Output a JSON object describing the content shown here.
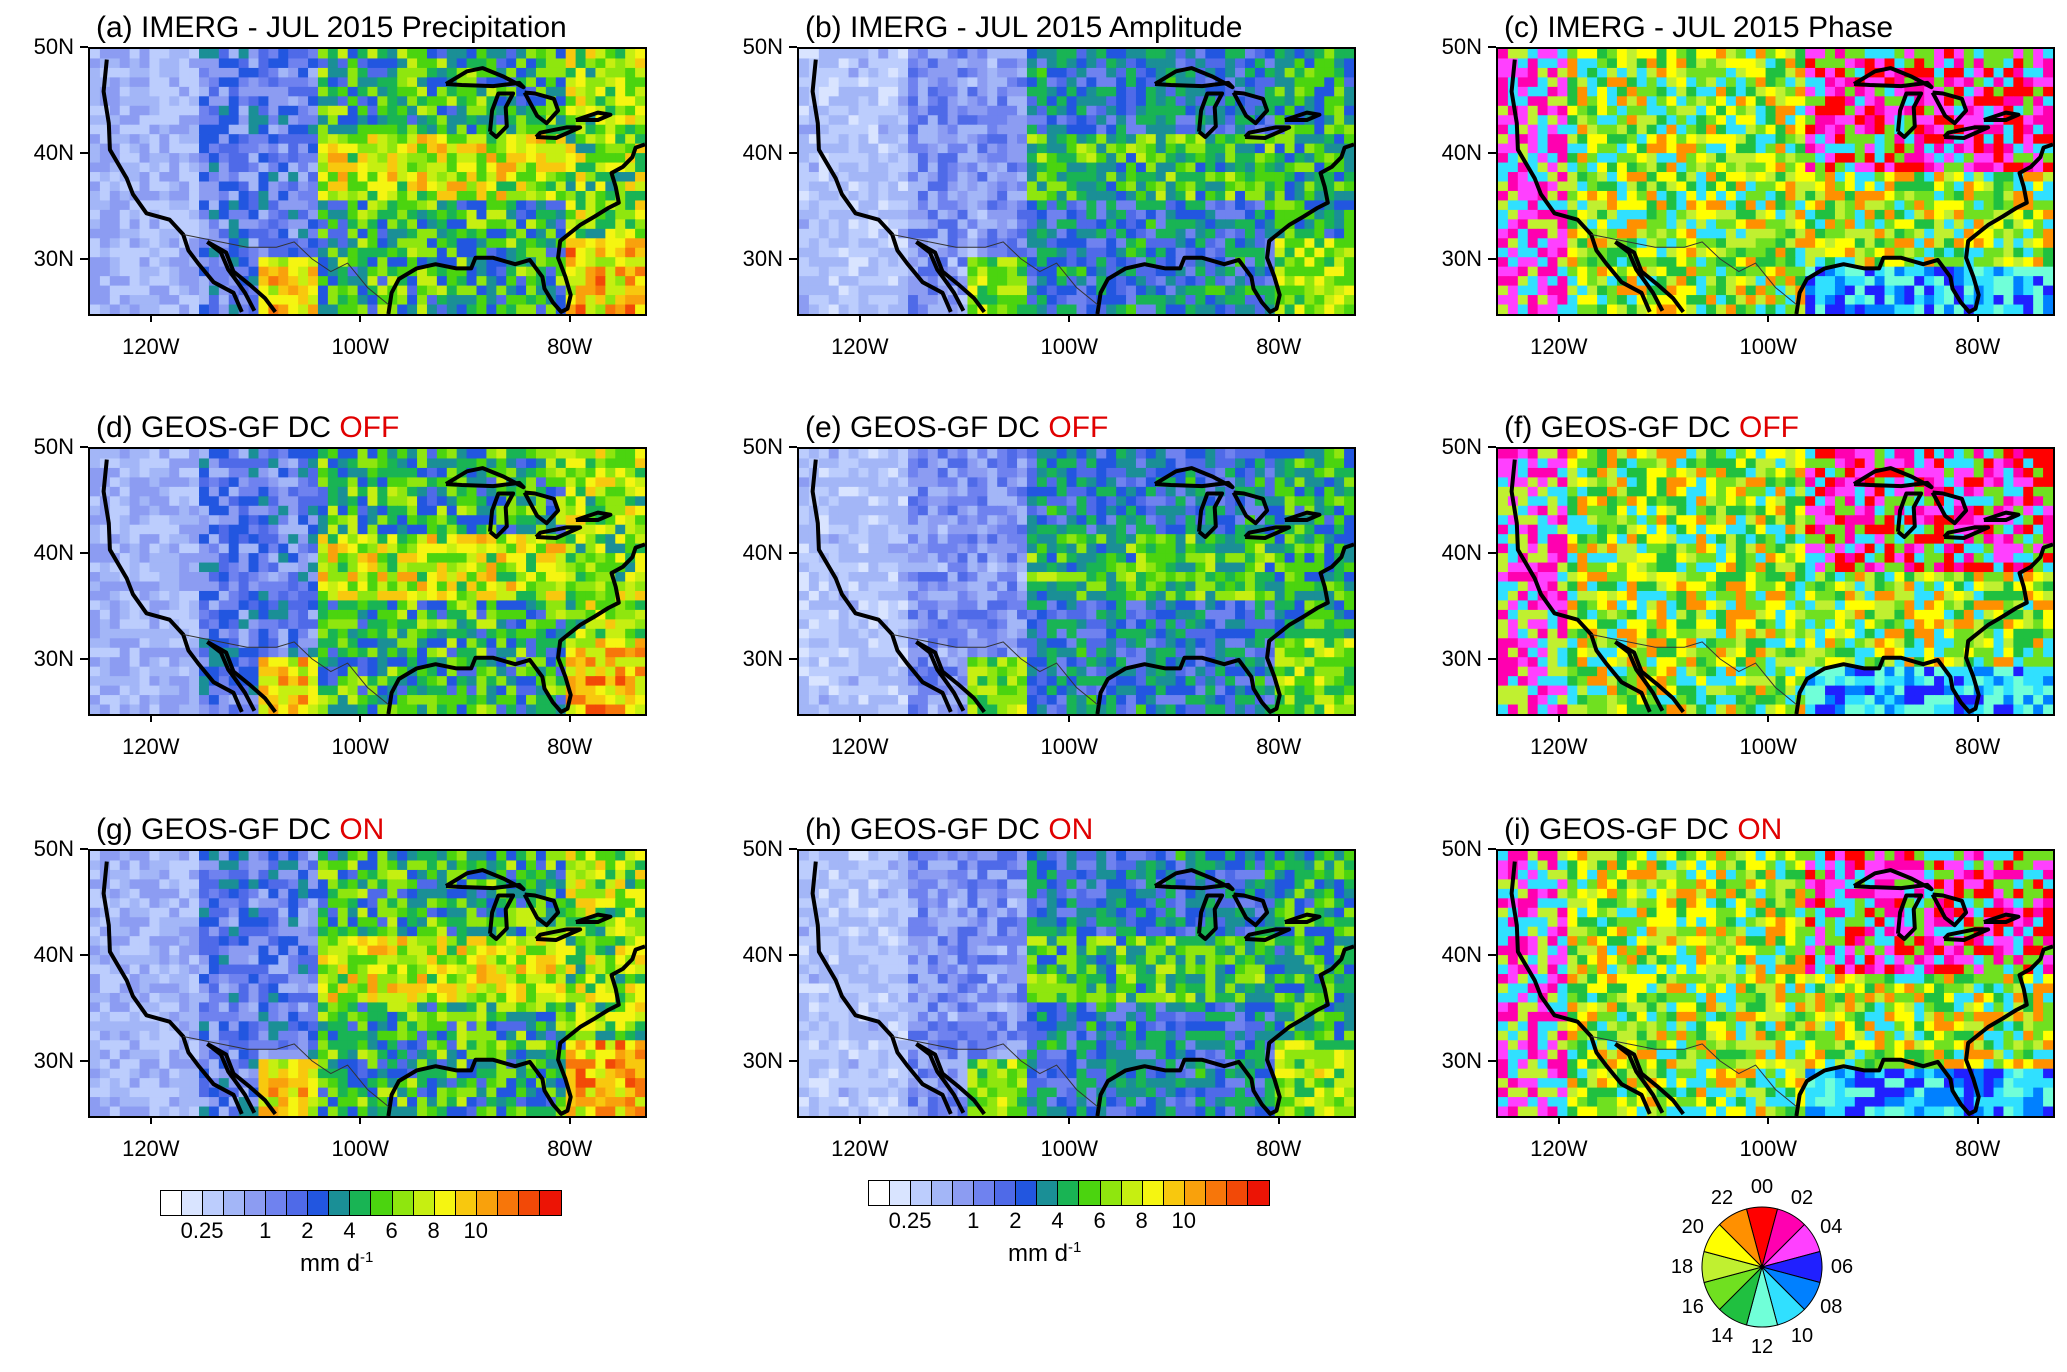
{
  "panels": [
    {
      "id": "a",
      "title": "(a) IMERG - JUL 2015 Precipitation",
      "title_highlight": "",
      "kind": "precip"
    },
    {
      "id": "b",
      "title": "(b) IMERG - JUL 2015 Amplitude",
      "title_highlight": "",
      "kind": "amp"
    },
    {
      "id": "c",
      "title": "(c) IMERG - JUL 2015 Phase",
      "title_highlight": "",
      "kind": "phase"
    },
    {
      "id": "d",
      "title": "(d) GEOS-GF  DC ",
      "title_highlight": "OFF",
      "kind": "precip"
    },
    {
      "id": "e",
      "title": "(e) GEOS-GF  DC ",
      "title_highlight": "OFF",
      "kind": "amp"
    },
    {
      "id": "f",
      "title": "(f) GEOS-GF  DC ",
      "title_highlight": "OFF",
      "kind": "phase"
    },
    {
      "id": "g",
      "title": "(g) GEOS-GF   DC ",
      "title_highlight": "ON",
      "kind": "precip"
    },
    {
      "id": "h",
      "title": "(h) GEOS-GF   DC ",
      "title_highlight": "ON",
      "kind": "amp"
    },
    {
      "id": "i",
      "title": "(i) GEOS-GF  DC ",
      "title_highlight": "ON",
      "kind": "phase"
    }
  ],
  "axes": {
    "lat_labels": [
      "50N",
      "40N",
      "30N"
    ],
    "lat_values": [
      50,
      40,
      30
    ],
    "lon_labels": [
      "120W",
      "100W",
      "80W"
    ],
    "lon_values": [
      -120,
      -100,
      -80
    ],
    "lon_range": [
      -126,
      -73
    ],
    "lat_range": [
      25,
      50
    ]
  },
  "colorbars": [
    {
      "labels": [
        "0.25",
        "1",
        "2",
        "4",
        "6",
        "8",
        "10"
      ],
      "units": "mm d",
      "units_sup": "-1"
    },
    {
      "labels": [
        "0.25",
        "1",
        "2",
        "4",
        "6",
        "8",
        "10"
      ],
      "units": "mm d",
      "units_sup": "-1"
    }
  ],
  "precip_colors": [
    "#ffffff",
    "#d9e4ff",
    "#bccdfd",
    "#a3b6f7",
    "#8c9cf2",
    "#6f82ef",
    "#4f6ae8",
    "#2256e0",
    "#1a8f96",
    "#19b454",
    "#4bd40f",
    "#8fe60e",
    "#c6ef11",
    "#f5f511",
    "#f8c80e",
    "#f9a10c",
    "#f7760a",
    "#f24907",
    "#ec1405"
  ],
  "phase_wheel": {
    "labels": [
      "00",
      "02",
      "04",
      "06",
      "08",
      "10",
      "12",
      "14",
      "16",
      "18",
      "20",
      "22"
    ],
    "colors": [
      "#ff0000",
      "#ff00b0",
      "#ff40ff",
      "#2020ff",
      "#0080ff",
      "#30e0ff",
      "#70ffd8",
      "#20c040",
      "#70e020",
      "#c0f030",
      "#ffff00",
      "#ff9000"
    ]
  }
}
